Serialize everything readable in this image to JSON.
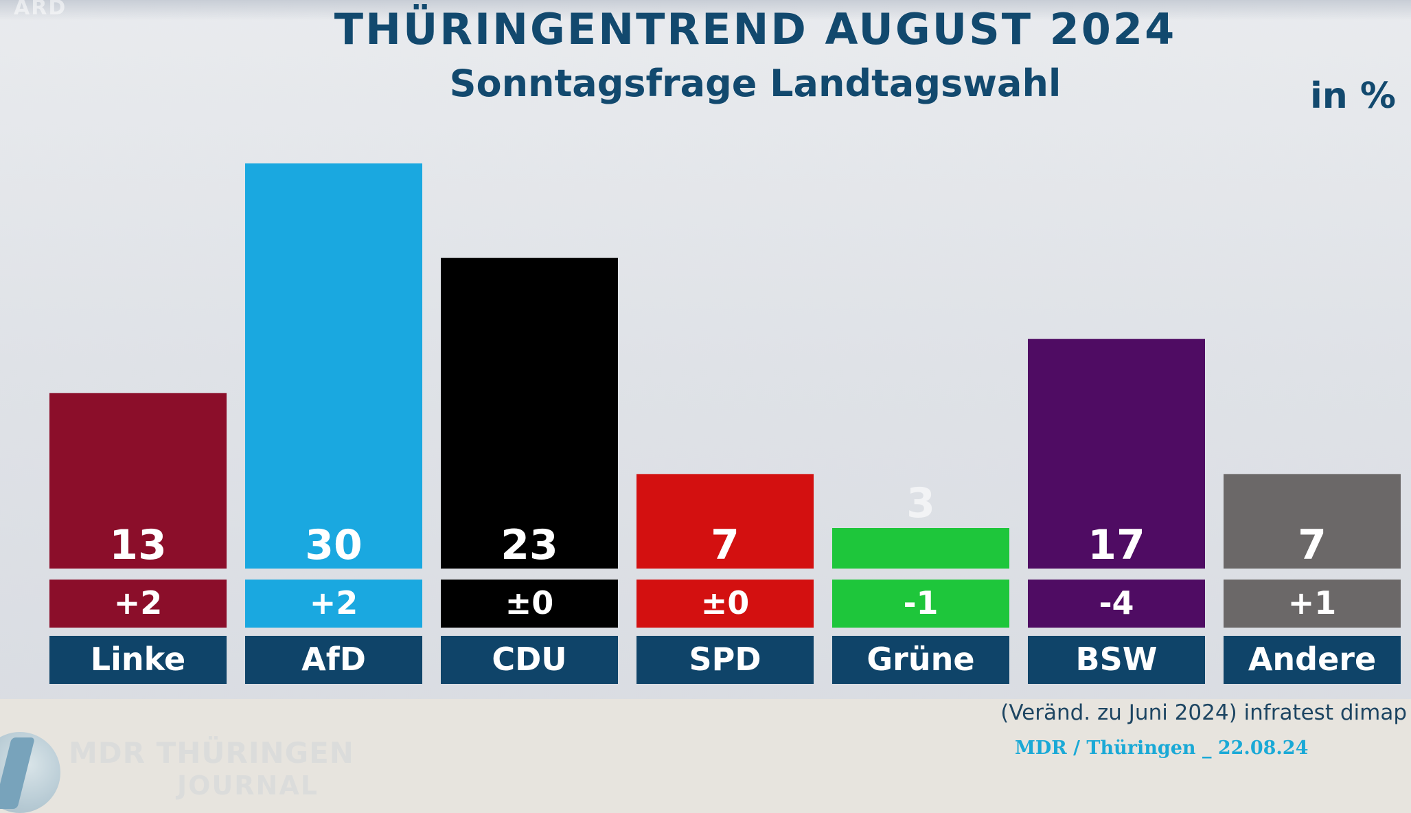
{
  "header": {
    "title": "THÜRINGENTREND AUGUST 2024",
    "subtitle": "Sonntagsfrage Landtagswahl",
    "unit": "in %"
  },
  "footer": {
    "source": "(Veränd. zu Juni 2024) infratest dimap",
    "credit": "MDR / Thüringen _ 22.08.24"
  },
  "logo": {
    "line1": "MDR THÜRINGEN",
    "line2": "JOURNAL",
    "corner": "ARD"
  },
  "chart_data": {
    "type": "bar",
    "title": "THÜRINGENTREND AUGUST 2024",
    "subtitle": "Sonntagsfrage Landtagswahl",
    "xlabel": "",
    "ylabel": "in %",
    "ylim": [
      0,
      30
    ],
    "categories": [
      "Linke",
      "AfD",
      "CDU",
      "SPD",
      "Grüne",
      "BSW",
      "Andere"
    ],
    "values": [
      13,
      30,
      23,
      7,
      3,
      17,
      7
    ],
    "changes": [
      "+2",
      "+2",
      "±0",
      "±0",
      "-1",
      "-4",
      "+1"
    ],
    "colors": [
      "#8b0e2a",
      "#1aa8e0",
      "#000000",
      "#d31010",
      "#1ec63b",
      "#4f0c63",
      "#6b6868"
    ],
    "category_label_color": "#0f4469",
    "change_reference": "Veränd. zu Juni 2024",
    "grid": false
  }
}
